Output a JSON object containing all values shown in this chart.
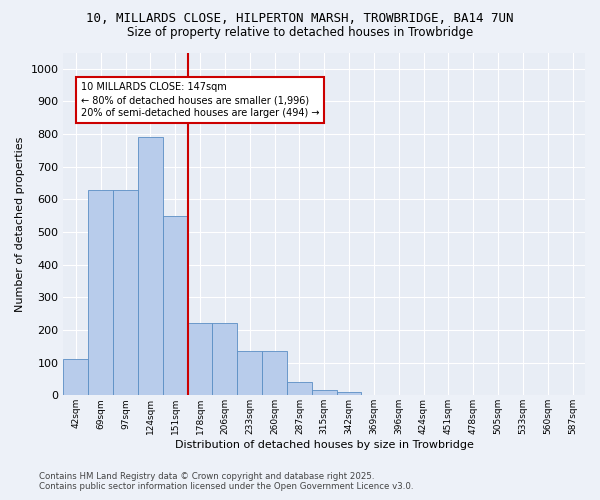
{
  "title_line1": "10, MILLARDS CLOSE, HILPERTON MARSH, TROWBRIDGE, BA14 7UN",
  "title_line2": "Size of property relative to detached houses in Trowbridge",
  "xlabel": "Distribution of detached houses by size in Trowbridge",
  "ylabel": "Number of detached properties",
  "bar_labels": [
    "42sqm",
    "69sqm",
    "97sqm",
    "124sqm",
    "151sqm",
    "178sqm",
    "206sqm",
    "233sqm",
    "260sqm",
    "287sqm",
    "315sqm",
    "342sqm",
    "369sqm",
    "396sqm",
    "424sqm",
    "451sqm",
    "478sqm",
    "505sqm",
    "533sqm",
    "560sqm",
    "587sqm"
  ],
  "bar_values": [
    110,
    630,
    630,
    790,
    550,
    220,
    220,
    135,
    135,
    40,
    15,
    10,
    0,
    0,
    0,
    0,
    0,
    0,
    0,
    0,
    0
  ],
  "bar_color": "#b8cceb",
  "bar_edge_color": "#5b8ec4",
  "bg_color": "#e8edf5",
  "grid_color": "#ffffff",
  "red_line_x": 4.5,
  "annotation_text": "10 MILLARDS CLOSE: 147sqm\n← 80% of detached houses are smaller (1,996)\n20% of semi-detached houses are larger (494) →",
  "annotation_box_color": "#ffffff",
  "annotation_box_edge": "#cc0000",
  "red_line_color": "#cc0000",
  "ylim": [
    0,
    1050
  ],
  "yticks": [
    0,
    100,
    200,
    300,
    400,
    500,
    600,
    700,
    800,
    900,
    1000
  ],
  "footnote": "Contains HM Land Registry data © Crown copyright and database right 2025.\nContains public sector information licensed under the Open Government Licence v3.0.",
  "fig_bg": "#edf1f8"
}
